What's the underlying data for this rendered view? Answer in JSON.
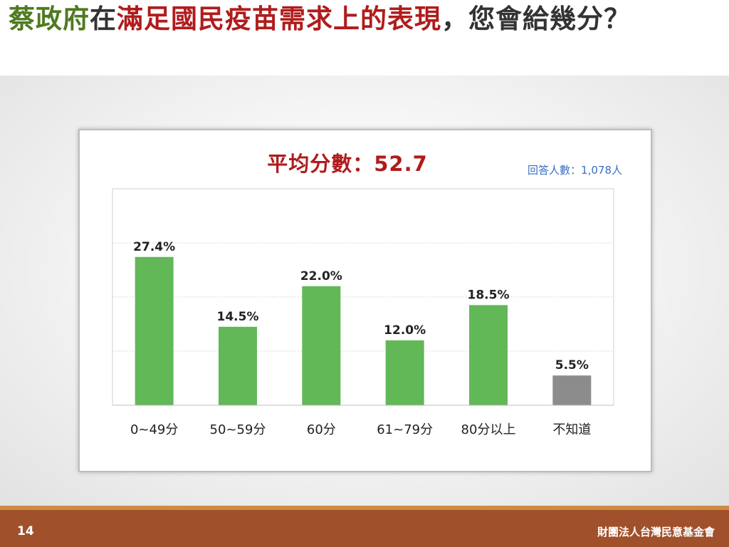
{
  "title": {
    "part1": "蔡政府",
    "part2": "在",
    "part3": "滿足國民疫苗需求上的表現",
    "part4": "，您會給幾分？"
  },
  "colors": {
    "bar_main": "#62b857",
    "bar_unknown": "#8c8c8c",
    "title_red": "#b01c1c",
    "title_green": "#4f7a20",
    "footer": "#a0512b"
  },
  "chart_data": {
    "type": "bar",
    "title": "平均分數：52.7",
    "annotation": "回答人數：1,078人",
    "categories": [
      "0~49分",
      "50~59分",
      "60分",
      "61~79分",
      "80分以上",
      "不知道"
    ],
    "values": [
      27.4,
      14.5,
      22.0,
      12.0,
      18.5,
      5.5
    ],
    "data_labels": [
      "27.4%",
      "14.5%",
      "22.0%",
      "12.0%",
      "18.5%",
      "5.5%"
    ],
    "ylim": [
      0,
      40
    ],
    "grid": true,
    "legend": "none"
  },
  "footer": {
    "page_number": "14",
    "organization": "財團法人台灣民意基金會"
  }
}
